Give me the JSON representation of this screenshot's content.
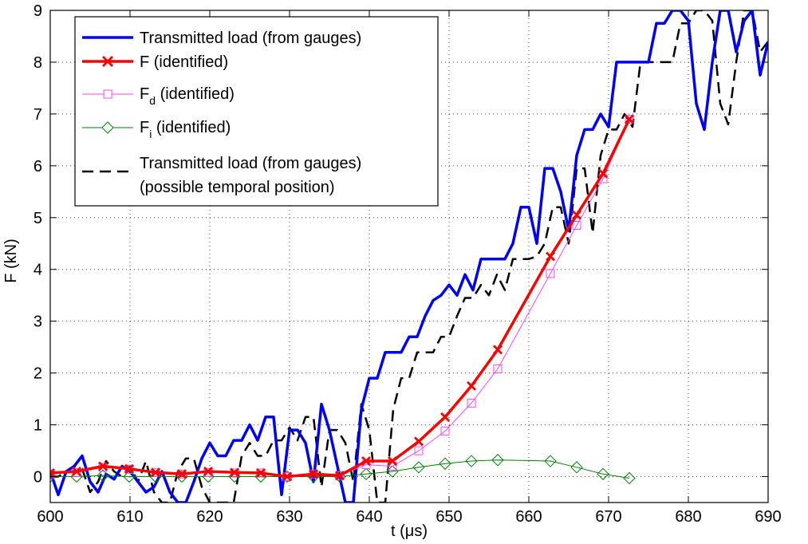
{
  "chart_data": {
    "type": "line",
    "xlabel": "t (μs)",
    "ylabel": "F (kN)",
    "xlim": [
      600,
      690
    ],
    "ylim": [
      -0.5,
      9
    ],
    "xticks": [
      600,
      610,
      620,
      630,
      640,
      650,
      660,
      670,
      680,
      690
    ],
    "yticks": [
      0,
      1,
      2,
      3,
      4,
      5,
      6,
      7,
      8,
      9
    ],
    "grid": "dotted",
    "legend_position": "top-left",
    "series": [
      {
        "name": "Transmitted load (from gauges)",
        "color": "#0000ff",
        "style": "solid-thick",
        "marker": "none",
        "x": [
          600,
          601,
          602,
          603,
          604,
          605,
          606,
          607,
          608,
          609,
          610,
          611,
          612,
          613,
          614,
          615,
          616,
          617,
          618,
          619,
          620,
          621,
          622,
          623,
          624,
          625,
          626,
          627,
          628,
          629,
          630,
          631,
          632,
          633,
          634,
          635,
          636,
          637,
          638,
          639,
          640,
          641,
          642,
          643,
          644,
          645,
          646,
          647,
          648,
          649,
          650,
          651,
          652,
          653,
          654,
          655,
          656,
          657,
          658,
          659,
          660,
          661,
          662,
          663,
          664,
          665,
          666,
          667,
          668,
          669,
          670,
          671,
          672,
          673,
          674,
          675,
          676,
          677,
          678,
          679,
          680,
          681,
          682,
          683,
          684,
          685,
          686,
          687,
          688,
          689,
          690
        ],
        "values": [
          0.1,
          -0.35,
          0.1,
          0.2,
          0.4,
          -0.1,
          -0.3,
          0.05,
          -0.05,
          0.2,
          0.1,
          -0.1,
          -0.3,
          -0.2,
          0.1,
          -0.3,
          -0.5,
          -0.5,
          -0.1,
          0.35,
          0.65,
          0.4,
          0.4,
          0.7,
          0.7,
          1.0,
          0.7,
          1.15,
          1.15,
          -0.35,
          0.9,
          0.9,
          0.65,
          -0.1,
          1.4,
          0.9,
          0.2,
          -0.5,
          -0.5,
          1.3,
          1.9,
          1.9,
          2.4,
          2.4,
          2.4,
          2.7,
          2.7,
          3.1,
          3.4,
          3.5,
          3.7,
          3.5,
          3.9,
          3.6,
          4.2,
          4.2,
          4.2,
          4.2,
          4.5,
          5.2,
          5.2,
          4.5,
          5.95,
          5.95,
          5.5,
          4.75,
          6.2,
          6.7,
          6.7,
          7.0,
          6.75,
          8.0,
          8.0,
          8.0,
          8.0,
          8.0,
          8.75,
          8.75,
          9.0,
          9.0,
          8.8,
          7.2,
          6.7,
          8.0,
          9.0,
          9.0,
          8.2,
          8.8,
          9.0,
          7.75,
          8.4
        ]
      },
      {
        "name": "F (identified)",
        "color": "#ff0000",
        "style": "solid-thick",
        "marker": "x",
        "x": [
          600.0,
          603.3,
          606.6,
          609.9,
          613.2,
          616.5,
          619.8,
          623.1,
          626.4,
          629.7,
          633.0,
          636.3,
          639.6,
          642.9,
          646.2,
          649.5,
          652.8,
          656.1,
          662.7,
          666.0,
          669.3,
          672.6
        ],
        "values": [
          0.07,
          0.1,
          0.2,
          0.15,
          0.08,
          0.05,
          0.1,
          0.08,
          0.07,
          0.0,
          0.05,
          0.02,
          0.3,
          0.3,
          0.68,
          1.15,
          1.75,
          2.45,
          4.25,
          5.05,
          5.85,
          6.9
        ]
      },
      {
        "name": "F_d (identified)",
        "color": "#ff44ff",
        "style": "solid-thin",
        "marker": "square",
        "x": [
          600.0,
          603.3,
          606.6,
          609.9,
          613.2,
          616.5,
          619.8,
          623.1,
          626.4,
          629.7,
          633.0,
          636.3,
          639.6,
          642.9,
          646.2,
          649.5,
          652.8,
          656.1,
          662.7,
          666.0,
          669.3,
          672.6
        ],
        "values": [
          0.05,
          0.08,
          0.18,
          0.14,
          0.08,
          0.05,
          0.08,
          0.07,
          0.07,
          0.0,
          0.05,
          0.02,
          0.23,
          0.2,
          0.5,
          0.88,
          1.42,
          2.08,
          3.92,
          4.85,
          5.75,
          6.9
        ]
      },
      {
        "name": "F_i (identified)",
        "color": "#008000",
        "style": "solid-thin",
        "marker": "diamond",
        "x": [
          600.0,
          603.3,
          606.6,
          609.9,
          613.2,
          616.5,
          619.8,
          623.1,
          626.4,
          629.7,
          633.0,
          636.3,
          639.6,
          642.9,
          646.2,
          649.5,
          652.8,
          656.1,
          662.7,
          666.0,
          669.3,
          672.6
        ],
        "values": [
          0.0,
          0.0,
          0.02,
          0.0,
          0.0,
          0.0,
          0.0,
          0.0,
          0.0,
          0.0,
          0.0,
          0.0,
          0.05,
          0.1,
          0.18,
          0.25,
          0.3,
          0.32,
          0.3,
          0.18,
          0.05,
          -0.03
        ]
      },
      {
        "name": "Transmitted load (from gauges) (possible temporal position)",
        "color": "#000000",
        "style": "dashed-thick",
        "marker": "none",
        "x": [
          600,
          601,
          602,
          603,
          604,
          605,
          606,
          607,
          608,
          609,
          610,
          611,
          612,
          613,
          614,
          615,
          616,
          617,
          618,
          619,
          620,
          621,
          622,
          623,
          624,
          625,
          626,
          627,
          628,
          629,
          630,
          631,
          632,
          633,
          634,
          635,
          636,
          637,
          638,
          639,
          640,
          641,
          642,
          643,
          644,
          645,
          646,
          647,
          648,
          649,
          650,
          651,
          652,
          653,
          654,
          655,
          656,
          657,
          658,
          659,
          660,
          661,
          662,
          663,
          664,
          665,
          666,
          667,
          668,
          669,
          670,
          671,
          672,
          673,
          674,
          675,
          676,
          677,
          678,
          679,
          680,
          681,
          682,
          683,
          684,
          685,
          686,
          687,
          688,
          689,
          690
        ],
        "values": [
          0.0,
          0.0,
          0.1,
          0.2,
          0.15,
          -0.3,
          -0.1,
          0.3,
          0.1,
          0.0,
          0.2,
          -0.1,
          0.3,
          -0.3,
          -0.5,
          -0.5,
          0.1,
          0.35,
          0.35,
          -0.2,
          -0.5,
          -0.5,
          -0.5,
          -0.5,
          0.4,
          0.65,
          0.4,
          0.4,
          0.7,
          0.7,
          0.95,
          0.7,
          1.15,
          1.15,
          -0.2,
          0.9,
          0.9,
          0.65,
          -0.1,
          1.4,
          0.9,
          -0.5,
          -0.5,
          1.3,
          1.9,
          1.9,
          2.4,
          2.4,
          2.4,
          2.7,
          2.7,
          3.1,
          3.45,
          3.45,
          3.7,
          3.5,
          3.9,
          3.6,
          4.2,
          4.2,
          4.2,
          4.25,
          4.5,
          5.2,
          5.2,
          4.5,
          5.95,
          5.95,
          4.7,
          6.2,
          6.7,
          6.7,
          7.0,
          6.75,
          8.0,
          8.0,
          8.0,
          8.0,
          8.0,
          8.75,
          8.75,
          9.0,
          9.0,
          8.8,
          7.2,
          6.8,
          8.0,
          9.0,
          9.0,
          8.2,
          8.4
        ]
      }
    ]
  }
}
